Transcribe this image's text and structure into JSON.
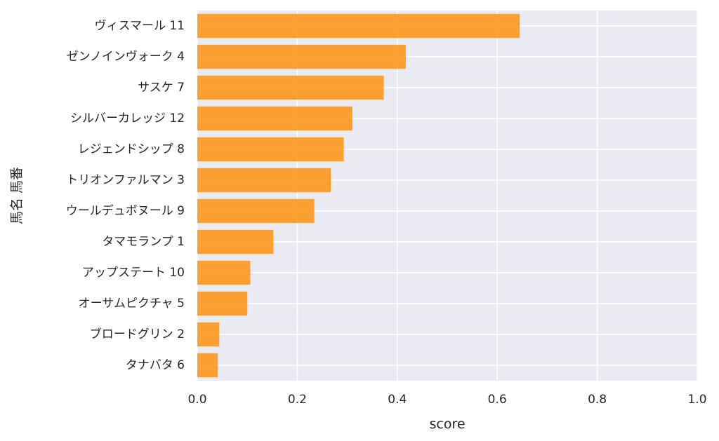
{
  "chart_data": {
    "type": "bar",
    "orientation": "horizontal",
    "categories": [
      "ヴィスマール 11",
      "ゼンノインヴォーク 4",
      "サスケ 7",
      "シルバーカレッジ 12",
      "レジェンドシップ 8",
      "トリオンファルマン 3",
      "ウールデュボヌール 9",
      "タマモランプ 1",
      "アップステート 10",
      "オーサムピクチャ 5",
      "ブロードグリン 2",
      "タナバタ 6"
    ],
    "values": [
      0.645,
      0.417,
      0.373,
      0.31,
      0.293,
      0.267,
      0.234,
      0.152,
      0.106,
      0.1,
      0.044,
      0.041
    ],
    "xlabel": "score",
    "ylabel": "馬名 馬番",
    "xlim": [
      0.0,
      1.0
    ],
    "xticks": [
      "0.0",
      "0.2",
      "0.4",
      "0.6",
      "0.8",
      "1.0"
    ],
    "grid": true,
    "colors": {
      "bar": "#ff8c00",
      "background": "#eaeaf2",
      "grid": "#ffffff",
      "text": "#262626"
    }
  }
}
